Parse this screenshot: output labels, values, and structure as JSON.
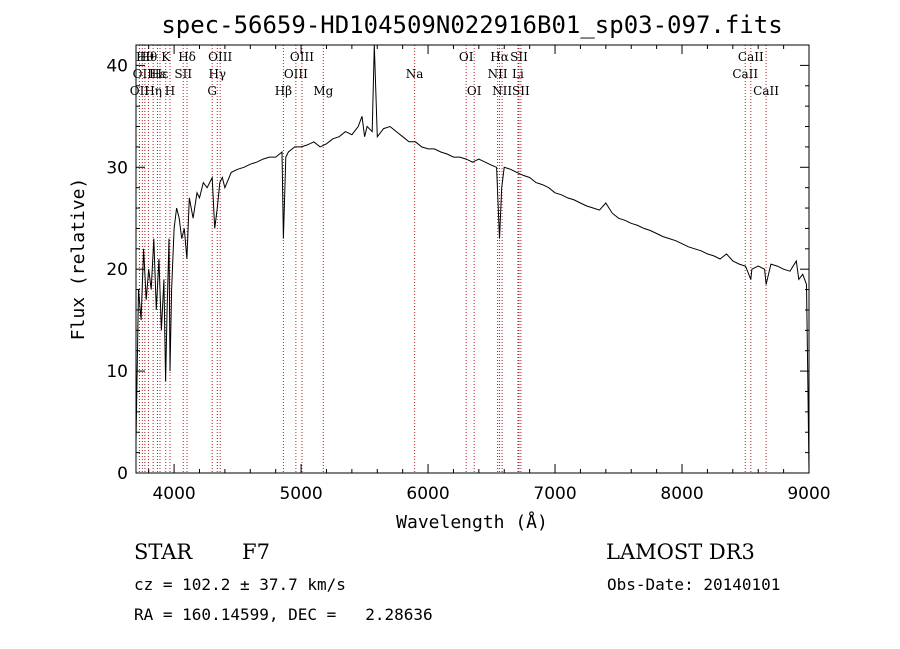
{
  "chart_data": {
    "type": "line",
    "title": "spec-56659-HD104509N022916B01_sp03-097.fits",
    "xlabel": "Wavelength (Å)",
    "ylabel": "Flux (relative)",
    "xlim": [
      3700,
      9000
    ],
    "ylim": [
      0,
      42
    ],
    "x_ticks": [
      4000,
      5000,
      6000,
      7000,
      8000,
      9000
    ],
    "y_ticks": [
      0,
      10,
      20,
      30,
      40
    ],
    "x_tick_labels": [
      "4000",
      "5000",
      "6000",
      "7000",
      "8000",
      "9000"
    ],
    "y_tick_labels": [
      "0",
      "10",
      "20",
      "30",
      "40"
    ],
    "grid": false,
    "series": [
      {
        "name": "flux",
        "x": [
          3700,
          3720,
          3740,
          3760,
          3780,
          3800,
          3820,
          3840,
          3860,
          3880,
          3900,
          3920,
          3933,
          3945,
          3960,
          3968,
          3980,
          4000,
          4020,
          4040,
          4060,
          4080,
          4101,
          4120,
          4150,
          4180,
          4200,
          4230,
          4260,
          4300,
          4320,
          4340,
          4360,
          4380,
          4400,
          4450,
          4500,
          4550,
          4600,
          4650,
          4700,
          4750,
          4800,
          4850,
          4861,
          4880,
          4900,
          4950,
          5000,
          5050,
          5100,
          5150,
          5200,
          5250,
          5300,
          5350,
          5400,
          5450,
          5480,
          5500,
          5520,
          5560,
          5577,
          5600,
          5650,
          5700,
          5750,
          5800,
          5850,
          5900,
          5950,
          6000,
          6050,
          6100,
          6150,
          6200,
          6250,
          6300,
          6350,
          6400,
          6450,
          6500,
          6540,
          6563,
          6580,
          6600,
          6650,
          6700,
          6750,
          6800,
          6850,
          6900,
          6950,
          7000,
          7050,
          7100,
          7150,
          7200,
          7250,
          7300,
          7350,
          7400,
          7450,
          7500,
          7550,
          7600,
          7650,
          7700,
          7750,
          7800,
          7850,
          7900,
          7950,
          8000,
          8050,
          8100,
          8150,
          8200,
          8250,
          8300,
          8350,
          8400,
          8450,
          8500,
          8542,
          8550,
          8600,
          8650,
          8662,
          8700,
          8750,
          8800,
          8850,
          8900,
          8920,
          8950,
          8980,
          8990,
          9000
        ],
        "values": [
          3,
          18,
          15,
          22,
          17,
          20,
          18,
          23,
          16,
          21,
          14,
          19,
          9,
          16,
          23,
          10,
          18,
          24,
          26,
          25,
          23,
          24,
          21,
          27,
          25,
          27.5,
          27,
          28.5,
          28,
          29,
          24,
          26,
          28.5,
          29,
          28,
          29.5,
          29.8,
          30,
          30.3,
          30.5,
          30.8,
          31,
          31,
          31.5,
          23,
          31,
          31.5,
          32,
          32,
          32.2,
          32.5,
          32,
          32.3,
          32.8,
          33,
          33.5,
          33.2,
          34,
          35,
          33,
          34,
          33.5,
          42,
          33,
          33.8,
          34,
          33.5,
          33,
          32.5,
          32.5,
          32,
          31.8,
          31.8,
          31.5,
          31.3,
          31,
          31,
          30.8,
          30.5,
          30.8,
          30.5,
          30.2,
          30,
          23,
          28,
          30,
          29.8,
          29.5,
          29.2,
          29,
          28.5,
          28.3,
          28,
          27.5,
          27.3,
          27,
          26.8,
          26.5,
          26.2,
          26,
          25.8,
          26.5,
          25.5,
          25,
          24.8,
          24.5,
          24.3,
          24,
          23.8,
          23.5,
          23.2,
          23,
          22.8,
          22.5,
          22.2,
          22,
          21.8,
          21.5,
          21.3,
          21,
          21.5,
          20.8,
          20.5,
          20.3,
          19,
          20,
          20.3,
          20,
          18.5,
          20.5,
          20.3,
          20,
          19.8,
          20.8,
          19,
          19.5,
          18.5,
          10,
          0
        ]
      }
    ],
    "lines": [
      {
        "w": 3727,
        "name": "OII",
        "row": 2
      },
      {
        "w": 3750,
        "name": "OII",
        "row": 1
      },
      {
        "w": 3770,
        "name": "Hθ",
        "row": 0
      },
      {
        "w": 3798,
        "name": "Hθ",
        "row": 0
      },
      {
        "w": 3835,
        "name": "Hη",
        "row": 2
      },
      {
        "w": 3869,
        "name": "Hε",
        "row": 1
      },
      {
        "w": 3889,
        "name": "Hε",
        "row": 1
      },
      {
        "w": 3934,
        "name": "K",
        "row": 0
      },
      {
        "w": 3968,
        "name": "H",
        "row": 2
      },
      {
        "w": 4072,
        "name": "SII",
        "row": 1
      },
      {
        "w": 4102,
        "name": "Hδ",
        "row": 0
      },
      {
        "w": 4300,
        "name": "G",
        "row": 2
      },
      {
        "w": 4340,
        "name": "Hγ",
        "row": 1
      },
      {
        "w": 4363,
        "name": "OIII",
        "row": 0
      },
      {
        "w": 4861,
        "name": "Hβ",
        "row": 2
      },
      {
        "w": 4959,
        "name": "OIII",
        "row": 1
      },
      {
        "w": 5007,
        "name": "OIII",
        "row": 0
      },
      {
        "w": 5175,
        "name": "Mg",
        "row": 2
      },
      {
        "w": 5894,
        "name": "Na",
        "row": 1
      },
      {
        "w": 6300,
        "name": "OI",
        "row": 0
      },
      {
        "w": 6363,
        "name": "OI",
        "row": 2
      },
      {
        "w": 6548,
        "name": "NII",
        "row": 1
      },
      {
        "w": 6563,
        "name": "Hα",
        "row": 0
      },
      {
        "w": 6583,
        "name": "NII",
        "row": 2
      },
      {
        "w": 6708,
        "name": "Li",
        "row": 1
      },
      {
        "w": 6716,
        "name": "SII",
        "row": 0
      },
      {
        "w": 6731,
        "name": "SII",
        "row": 2
      },
      {
        "w": 8498,
        "name": "CaII",
        "row": 1
      },
      {
        "w": 8542,
        "name": "CaII",
        "row": 0
      },
      {
        "w": 8662,
        "name": "CaII",
        "row": 2
      }
    ]
  },
  "info": {
    "class": "STAR",
    "subclass": "F7",
    "survey": "LAMOST DR3",
    "cz": "cz = 102.2 ± 37.7 km/s",
    "obs_date": "Obs-Date: 20140101",
    "radec": "RA = 160.14599, DEC =   2.28636"
  },
  "colors": {
    "spectrum": "#000000",
    "line_marker": "#b22222"
  }
}
